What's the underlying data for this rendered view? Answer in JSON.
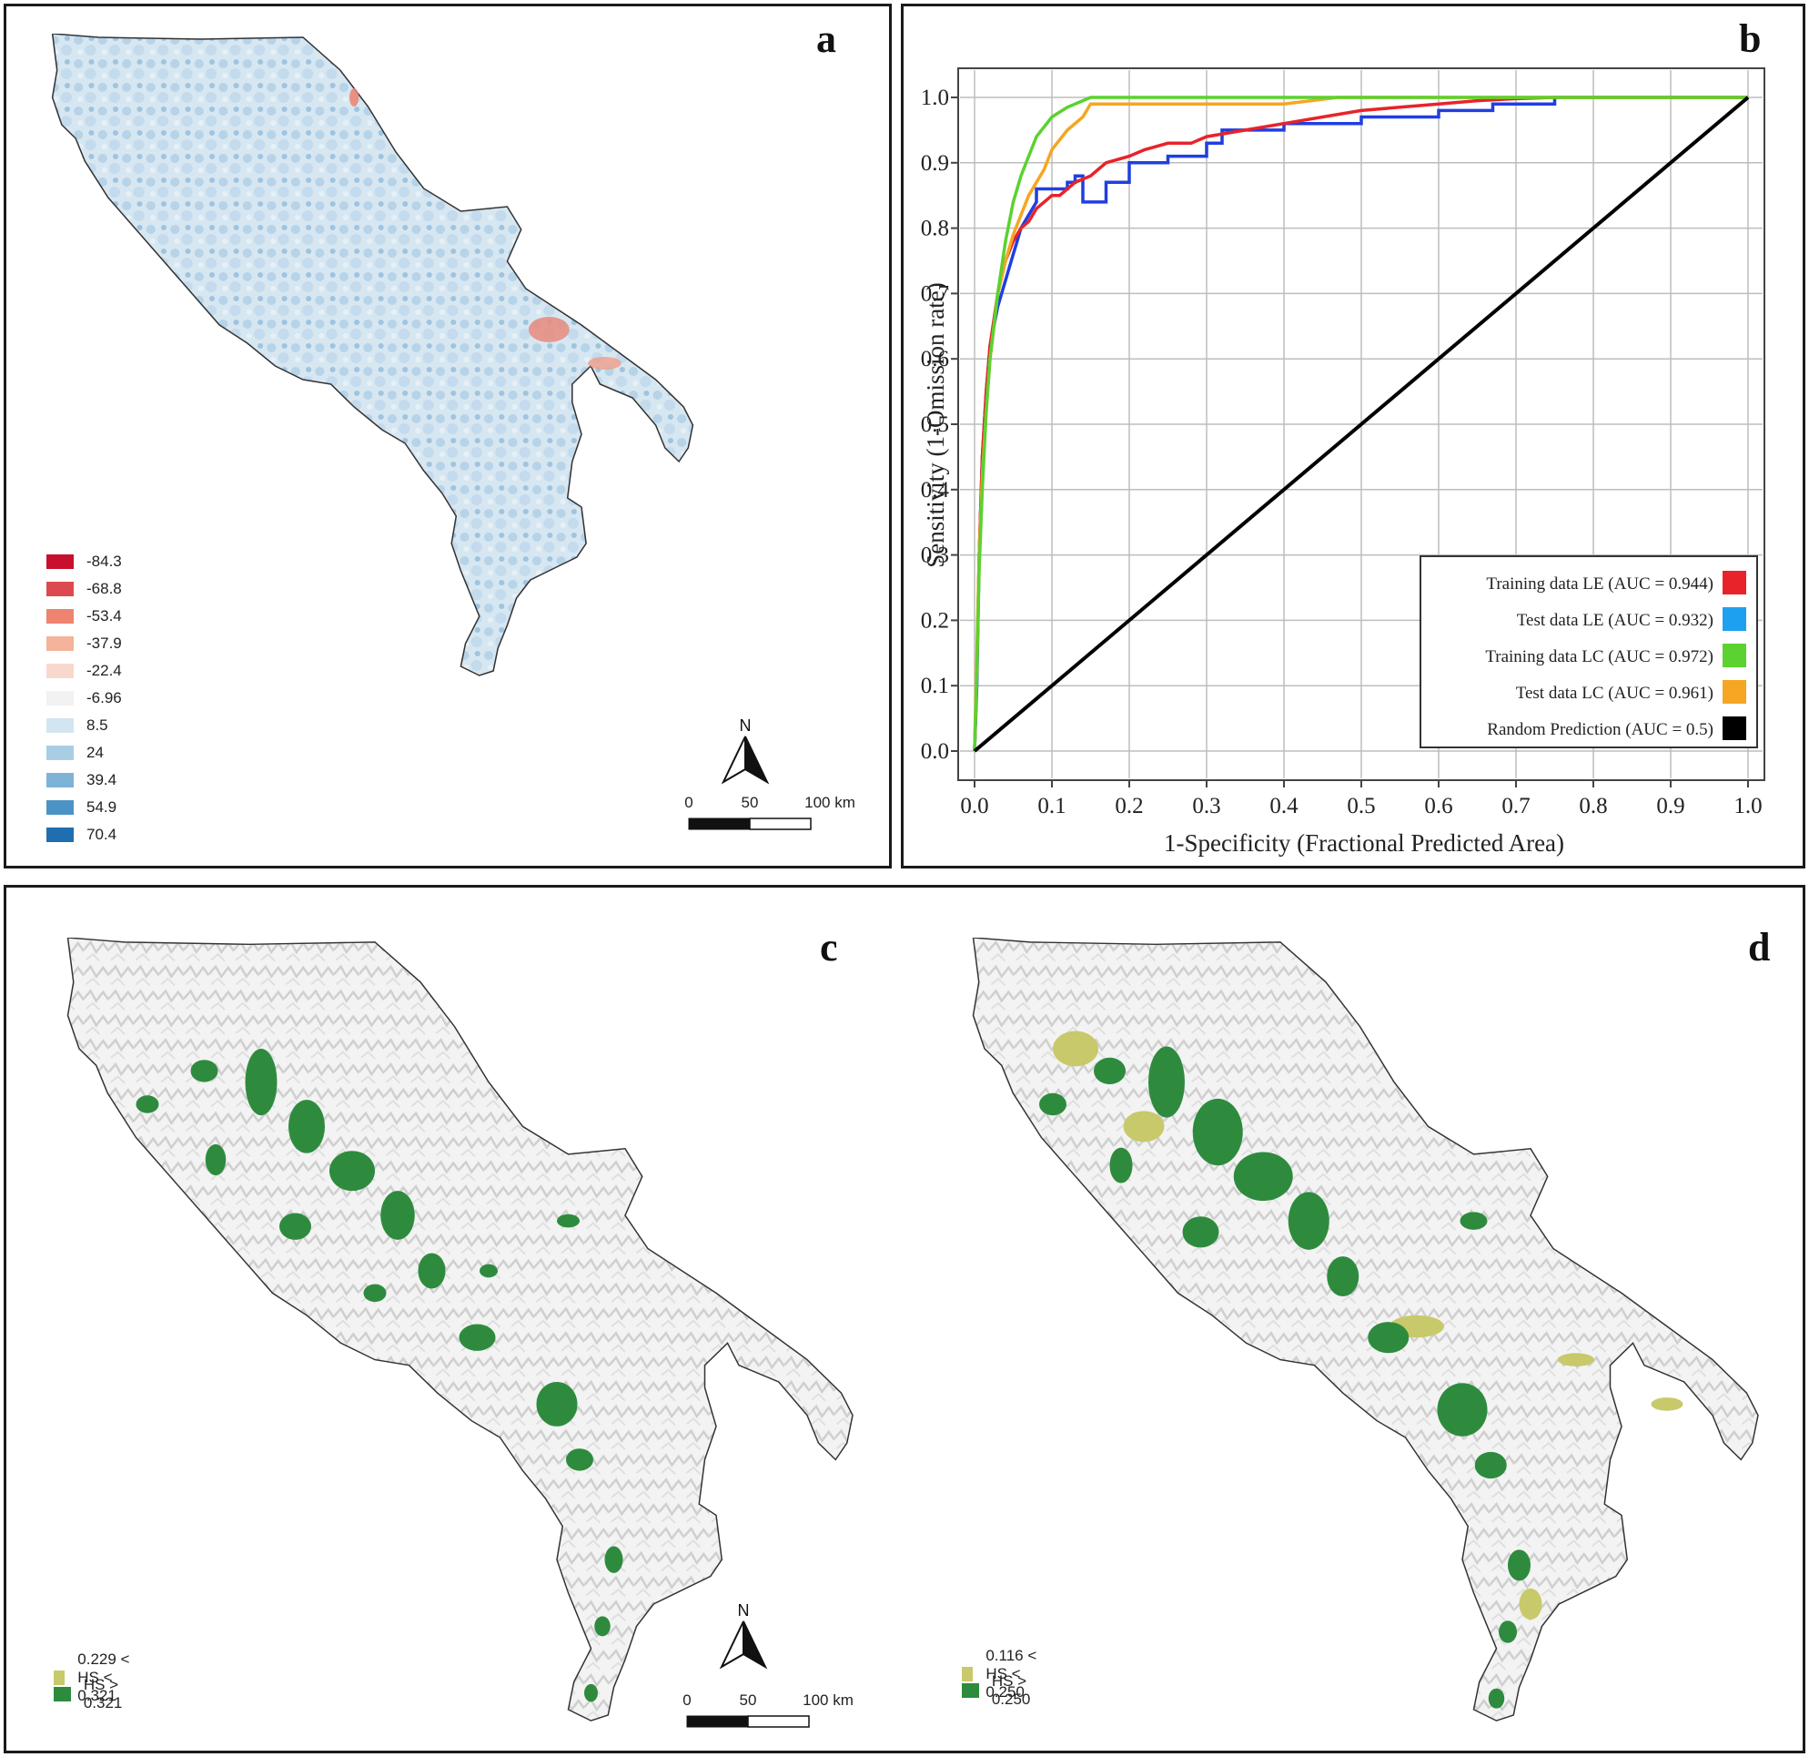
{
  "panel_a": {
    "letter": "a",
    "legend": [
      {
        "label": "-84.3",
        "color": "#c8102e"
      },
      {
        "label": "-68.8",
        "color": "#dc4a4f"
      },
      {
        "label": "-53.4",
        "color": "#ee8370"
      },
      {
        "label": "-37.9",
        "color": "#f4b39a"
      },
      {
        "label": "-22.4",
        "color": "#f8d8cc"
      },
      {
        "label": "-6.96",
        "color": "#f2f2f2"
      },
      {
        "label": "8.5",
        "color": "#d3e5f1"
      },
      {
        "label": "24",
        "color": "#a9cde4"
      },
      {
        "label": "39.4",
        "color": "#7fb3d6"
      },
      {
        "label": "54.9",
        "color": "#4c93c5"
      },
      {
        "label": "70.4",
        "color": "#1f6fb0"
      }
    ],
    "north": "N",
    "scale": {
      "t0": "0",
      "t1": "50",
      "t2": "100 km"
    }
  },
  "panel_b": {
    "letter": "b",
    "chart_data": {
      "type": "line",
      "xlabel": "1-Specificity (Fractional Predicted Area)",
      "ylabel": "Sensitivity (1-Omission rate)",
      "xlim": [
        0,
        1
      ],
      "ylim": [
        0,
        1
      ],
      "grid": true,
      "legend_position": "bottom-right",
      "xticks": [
        "0.0",
        "0.1",
        "0.2",
        "0.3",
        "0.4",
        "0.5",
        "0.6",
        "0.7",
        "0.8",
        "0.9",
        "1.0"
      ],
      "yticks": [
        "0.0",
        "0.1",
        "0.2",
        "0.3",
        "0.4",
        "0.5",
        "0.6",
        "0.7",
        "0.8",
        "0.9",
        "1.0"
      ],
      "series": [
        {
          "name": "Test data LE",
          "label": "Test data  LE (AUC = 0.932)",
          "color": "#1f3fe0",
          "legend_color": "#1ea0f0",
          "x": [
            0,
            0.003,
            0.006,
            0.01,
            0.015,
            0.02,
            0.03,
            0.04,
            0.05,
            0.055,
            0.06,
            0.07,
            0.08,
            0.08,
            0.1,
            0.1,
            0.12,
            0.12,
            0.13,
            0.13,
            0.14,
            0.14,
            0.17,
            0.17,
            0.2,
            0.2,
            0.25,
            0.25,
            0.3,
            0.3,
            0.32,
            0.32,
            0.4,
            0.4,
            0.5,
            0.5,
            0.6,
            0.6,
            0.67,
            0.67,
            0.75,
            0.75,
            0.9,
            1.0
          ],
          "y": [
            0,
            0.1,
            0.3,
            0.45,
            0.55,
            0.62,
            0.68,
            0.72,
            0.76,
            0.78,
            0.8,
            0.82,
            0.84,
            0.86,
            0.86,
            0.86,
            0.86,
            0.87,
            0.87,
            0.88,
            0.88,
            0.84,
            0.84,
            0.87,
            0.87,
            0.9,
            0.9,
            0.91,
            0.91,
            0.93,
            0.93,
            0.95,
            0.95,
            0.96,
            0.96,
            0.97,
            0.97,
            0.98,
            0.98,
            0.99,
            0.99,
            1.0,
            1.0,
            1.0
          ]
        },
        {
          "name": "Training data LE",
          "label": "Training data  LE (AUC = 0.944)",
          "color": "#e8232a",
          "legend_color": "#e8232a",
          "x": [
            0,
            0.003,
            0.006,
            0.01,
            0.015,
            0.02,
            0.03,
            0.04,
            0.05,
            0.06,
            0.07,
            0.08,
            0.09,
            0.1,
            0.11,
            0.12,
            0.13,
            0.15,
            0.17,
            0.2,
            0.22,
            0.25,
            0.28,
            0.3,
            0.35,
            0.4,
            0.45,
            0.5,
            0.55,
            0.6,
            0.65,
            0.7,
            0.75,
            0.8,
            0.9,
            1.0
          ],
          "y": [
            0,
            0.12,
            0.3,
            0.45,
            0.55,
            0.62,
            0.7,
            0.75,
            0.78,
            0.8,
            0.81,
            0.83,
            0.84,
            0.85,
            0.85,
            0.86,
            0.87,
            0.88,
            0.9,
            0.91,
            0.92,
            0.93,
            0.93,
            0.94,
            0.95,
            0.96,
            0.97,
            0.98,
            0.985,
            0.99,
            0.995,
            0.998,
            1.0,
            1.0,
            1.0,
            1.0
          ]
        },
        {
          "name": "Test data LC",
          "label": "Test data  LC (AUC = 0.961)",
          "color": "#f5a623",
          "legend_color": "#f5a623",
          "x": [
            0,
            0.003,
            0.006,
            0.01,
            0.015,
            0.02,
            0.025,
            0.03,
            0.04,
            0.05,
            0.06,
            0.07,
            0.08,
            0.09,
            0.1,
            0.12,
            0.14,
            0.15,
            0.2,
            0.3,
            0.4,
            0.47,
            0.5,
            1.0
          ],
          "y": [
            0,
            0.15,
            0.3,
            0.42,
            0.52,
            0.6,
            0.65,
            0.7,
            0.75,
            0.79,
            0.82,
            0.85,
            0.87,
            0.89,
            0.92,
            0.95,
            0.97,
            0.99,
            0.99,
            0.99,
            0.99,
            1.0,
            1.0,
            1.0
          ]
        },
        {
          "name": "Training data LC",
          "label": "Training data  LC (AUC = 0.972)",
          "color": "#5bd22f",
          "legend_color": "#5bd22f",
          "x": [
            0,
            0.003,
            0.006,
            0.01,
            0.015,
            0.02,
            0.03,
            0.04,
            0.05,
            0.06,
            0.07,
            0.08,
            0.1,
            0.12,
            0.14,
            0.15,
            0.2,
            0.3,
            0.4,
            0.5,
            0.7,
            1.0
          ],
          "y": [
            0,
            0.12,
            0.28,
            0.4,
            0.52,
            0.6,
            0.7,
            0.78,
            0.84,
            0.88,
            0.91,
            0.94,
            0.97,
            0.985,
            0.995,
            1.0,
            1.0,
            1.0,
            1.0,
            1.0,
            1.0,
            1.0
          ]
        },
        {
          "name": "Random Prediction",
          "label": "Random Prediction  (AUC = 0.5)",
          "color": "#000000",
          "legend_color": "#000000",
          "x": [
            0,
            1
          ],
          "y": [
            0,
            1
          ]
        }
      ],
      "legend_order": [
        1,
        0,
        3,
        2,
        4
      ]
    }
  },
  "panel_c": {
    "letter": "c",
    "legend": [
      {
        "label": "0.229 < HS < 0.321",
        "color": "#c8c96a"
      },
      {
        "label": "HS > 0.321",
        "color": "#2e8b3e"
      }
    ],
    "north": "N",
    "scale": {
      "t0": "0",
      "t1": "50",
      "t2": "100 km"
    }
  },
  "panel_d": {
    "letter": "d",
    "legend": [
      {
        "label": "0.116 < HS < 0.250",
        "color": "#c8c96a"
      },
      {
        "label": "HS > 0.250",
        "color": "#2e8b3e"
      }
    ]
  }
}
